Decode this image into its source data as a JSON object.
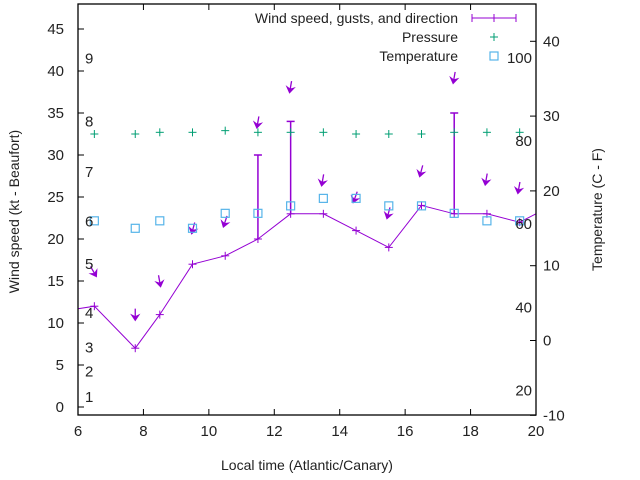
{
  "chart_data": {
    "type": "line",
    "xlabel": "Local time (Atlantic/Canary)",
    "ylabel": "Wind speed (kt - Beaufort)",
    "y2label": "Temperature (C - F)",
    "xlim": [
      6,
      20
    ],
    "ylim": [
      -1,
      48
    ],
    "y2lim": [
      -10,
      45
    ],
    "x_ticks": [
      "6",
      "8",
      "10",
      "12",
      "14",
      "16",
      "18",
      "20"
    ],
    "x_tick_values": [
      6,
      8,
      10,
      12,
      14,
      16,
      18,
      20
    ],
    "y_ticks": [
      "0",
      "5",
      "10",
      "15",
      "20",
      "25",
      "30",
      "35",
      "40",
      "45"
    ],
    "y_tick_values": [
      0,
      5,
      10,
      15,
      20,
      25,
      30,
      35,
      40,
      45
    ],
    "y2_ticks": [
      "-10",
      "0",
      "10",
      "20",
      "30",
      "40"
    ],
    "y2_tick_values": [
      -10,
      0,
      10,
      20,
      30,
      40
    ],
    "beaufort_labels": [
      {
        "label": "1",
        "kt": 1.2
      },
      {
        "label": "2",
        "kt": 4.2
      },
      {
        "label": "3",
        "kt": 7.1
      },
      {
        "label": "4",
        "kt": 11.2
      },
      {
        "label": "5",
        "kt": 17.0
      },
      {
        "label": "6",
        "kt": 22.1
      },
      {
        "label": "7",
        "kt": 28.0
      },
      {
        "label": "8",
        "kt": 34.0
      },
      {
        "label": "9",
        "kt": 41.5
      }
    ],
    "fahrenheit_labels": [
      {
        "label": "20",
        "f": 20
      },
      {
        "label": "40",
        "f": 40
      },
      {
        "label": "60",
        "f": 60
      },
      {
        "label": "80",
        "f": 80
      },
      {
        "label": "100",
        "f": 100
      }
    ],
    "legend": {
      "position": "top-right",
      "entries": [
        "Wind speed, gusts, and direction",
        "Pressure",
        "Temperature"
      ]
    },
    "colors": {
      "wind": "#9400d3",
      "pressure": "#009e73",
      "temperature": "#56b4e9",
      "axis": "#000000"
    },
    "series": [
      {
        "name": "Wind speed, gusts, and direction",
        "x": [
          6.5,
          7.75,
          8.5,
          9.5,
          10.5,
          11.5,
          12.5,
          13.5,
          14.5,
          15.5,
          16.5,
          17.5,
          18.5,
          19.5
        ],
        "values": [
          12,
          7,
          11,
          17,
          18,
          20,
          23,
          23,
          21,
          19,
          24,
          23,
          23,
          22
        ],
        "line_start": {
          "x": 6,
          "value": 11.7
        },
        "line_end": {
          "x": 20,
          "value": 23
        },
        "gusts": [
          {
            "x": 11.5,
            "value": 30
          },
          {
            "x": 12.5,
            "value": 34
          },
          {
            "x": 17.5,
            "value": 35
          }
        ],
        "direction_arrows": [
          {
            "x": 6.5,
            "tip_x": 6.55,
            "tip_kt": 15.6,
            "dir_deg": 330
          },
          {
            "x": 7.75,
            "tip_x": 7.75,
            "tip_kt": 10.4,
            "dir_deg": 0
          },
          {
            "x": 8.5,
            "tip_x": 8.52,
            "tip_kt": 14.4,
            "dir_deg": 350
          },
          {
            "x": 9.5,
            "tip_x": 9.48,
            "tip_kt": 20.7,
            "dir_deg": 15
          },
          {
            "x": 10.5,
            "tip_x": 10.45,
            "tip_kt": 21.5,
            "dir_deg": 18
          },
          {
            "x": 11.5,
            "tip_x": 11.47,
            "tip_kt": 33.3,
            "dir_deg": 10
          },
          {
            "x": 12.5,
            "tip_x": 12.47,
            "tip_kt": 37.5,
            "dir_deg": 10
          },
          {
            "x": 13.5,
            "tip_x": 13.45,
            "tip_kt": 26.4,
            "dir_deg": 10
          },
          {
            "x": 14.5,
            "tip_x": 14.42,
            "tip_kt": 24.4,
            "dir_deg": 20
          },
          {
            "x": 15.5,
            "tip_x": 15.45,
            "tip_kt": 22.5,
            "dir_deg": 15
          },
          {
            "x": 16.5,
            "tip_x": 16.45,
            "tip_kt": 27.5,
            "dir_deg": 15
          },
          {
            "x": 17.5,
            "tip_x": 17.47,
            "tip_kt": 38.6,
            "dir_deg": 10
          },
          {
            "x": 18.5,
            "tip_x": 18.45,
            "tip_kt": 26.5,
            "dir_deg": 10
          },
          {
            "x": 19.5,
            "tip_x": 19.45,
            "tip_kt": 25.5,
            "dir_deg": 10
          }
        ]
      },
      {
        "name": "Pressure",
        "note_axis": "none shown; plotted in left-axis units",
        "x": [
          6.5,
          7.75,
          8.5,
          9.5,
          10.5,
          11.5,
          12.5,
          13.5,
          14.5,
          15.5,
          16.5,
          17.5,
          18.5,
          19.5
        ],
        "values": [
          32.5,
          32.5,
          32.7,
          32.7,
          32.9,
          32.7,
          32.7,
          32.7,
          32.5,
          32.5,
          32.5,
          32.7,
          32.7,
          32.7
        ]
      },
      {
        "name": "Temperature",
        "axis": "right (C)",
        "x": [
          6.5,
          7.75,
          8.5,
          9.5,
          10.5,
          11.5,
          12.5,
          13.5,
          14.5,
          15.5,
          16.5,
          17.5,
          18.5,
          19.5
        ],
        "values": [
          16,
          15,
          16,
          15,
          17,
          17,
          18,
          19,
          19,
          18,
          18,
          17,
          16,
          16
        ]
      }
    ]
  }
}
